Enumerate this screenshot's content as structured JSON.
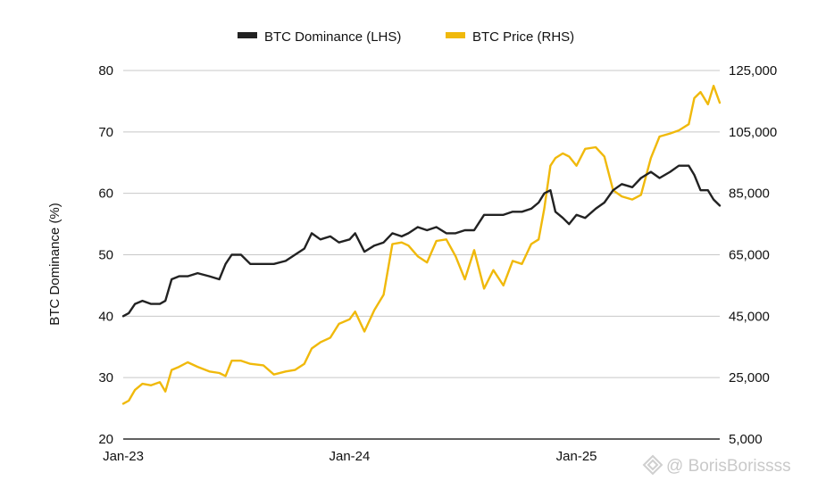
{
  "chart_data": {
    "type": "line",
    "legend": {
      "placement": "top-center"
    },
    "grid": {
      "horizontal": true,
      "vertical": false
    },
    "x_axis": {
      "type": "date",
      "range": [
        "2023-01-01",
        "2025-08-20"
      ],
      "ticks": [
        {
          "date": "2023-01-01",
          "label": "Jan-23"
        },
        {
          "date": "2024-01-01",
          "label": "Jan-24"
        },
        {
          "date": "2025-01-01",
          "label": "Jan-25"
        }
      ]
    },
    "y_left": {
      "label": "BTC Dominance (%)",
      "range": [
        20,
        80
      ],
      "ticks": [
        "20",
        "30",
        "40",
        "50",
        "60",
        "70",
        "80"
      ]
    },
    "y_right": {
      "label": "",
      "range": [
        5000,
        125000
      ],
      "ticks": [
        "5,000",
        "25,000",
        "45,000",
        "65,000",
        "85,000",
        "105,000",
        "125,000"
      ]
    },
    "series": [
      {
        "name": "BTC Dominance (LHS)",
        "axis": "left",
        "color": "#222222",
        "points": [
          [
            "2023-01-01",
            40.0
          ],
          [
            "2023-01-10",
            40.5
          ],
          [
            "2023-01-20",
            42.0
          ],
          [
            "2023-02-01",
            42.5
          ],
          [
            "2023-02-15",
            42.0
          ],
          [
            "2023-03-01",
            42.0
          ],
          [
            "2023-03-10",
            42.5
          ],
          [
            "2023-03-20",
            46.0
          ],
          [
            "2023-04-01",
            46.5
          ],
          [
            "2023-04-15",
            46.5
          ],
          [
            "2023-05-01",
            47.0
          ],
          [
            "2023-05-20",
            46.5
          ],
          [
            "2023-06-05",
            46.0
          ],
          [
            "2023-06-15",
            48.5
          ],
          [
            "2023-06-25",
            50.0
          ],
          [
            "2023-07-10",
            50.0
          ],
          [
            "2023-07-25",
            48.5
          ],
          [
            "2023-08-15",
            48.5
          ],
          [
            "2023-09-01",
            48.5
          ],
          [
            "2023-09-20",
            49.0
          ],
          [
            "2023-10-05",
            50.0
          ],
          [
            "2023-10-20",
            51.0
          ],
          [
            "2023-11-01",
            53.5
          ],
          [
            "2023-11-15",
            52.5
          ],
          [
            "2023-12-01",
            53.0
          ],
          [
            "2023-12-15",
            52.0
          ],
          [
            "2024-01-01",
            52.5
          ],
          [
            "2024-01-10",
            53.5
          ],
          [
            "2024-01-25",
            50.5
          ],
          [
            "2024-02-10",
            51.5
          ],
          [
            "2024-02-25",
            52.0
          ],
          [
            "2024-03-10",
            53.5
          ],
          [
            "2024-03-25",
            53.0
          ],
          [
            "2024-04-05",
            53.5
          ],
          [
            "2024-04-20",
            54.5
          ],
          [
            "2024-05-05",
            54.0
          ],
          [
            "2024-05-20",
            54.5
          ],
          [
            "2024-06-05",
            53.5
          ],
          [
            "2024-06-20",
            53.5
          ],
          [
            "2024-07-05",
            54.0
          ],
          [
            "2024-07-20",
            54.0
          ],
          [
            "2024-08-05",
            56.5
          ],
          [
            "2024-08-20",
            56.5
          ],
          [
            "2024-09-05",
            56.5
          ],
          [
            "2024-09-20",
            57.0
          ],
          [
            "2024-10-05",
            57.0
          ],
          [
            "2024-10-20",
            57.5
          ],
          [
            "2024-11-01",
            58.5
          ],
          [
            "2024-11-10",
            60.0
          ],
          [
            "2024-11-20",
            60.5
          ],
          [
            "2024-11-28",
            57.0
          ],
          [
            "2024-12-10",
            56.0
          ],
          [
            "2024-12-20",
            55.0
          ],
          [
            "2025-01-01",
            56.5
          ],
          [
            "2025-01-15",
            56.0
          ],
          [
            "2025-02-01",
            57.5
          ],
          [
            "2025-02-15",
            58.5
          ],
          [
            "2025-03-01",
            60.5
          ],
          [
            "2025-03-15",
            61.5
          ],
          [
            "2025-04-01",
            61.0
          ],
          [
            "2025-04-15",
            62.5
          ],
          [
            "2025-05-01",
            63.5
          ],
          [
            "2025-05-15",
            62.5
          ],
          [
            "2025-06-01",
            63.5
          ],
          [
            "2025-06-15",
            64.5
          ],
          [
            "2025-07-01",
            64.5
          ],
          [
            "2025-07-10",
            63.0
          ],
          [
            "2025-07-20",
            60.5
          ],
          [
            "2025-08-01",
            60.5
          ],
          [
            "2025-08-10",
            59.0
          ],
          [
            "2025-08-20",
            58.0
          ]
        ]
      },
      {
        "name": "BTC Price (RHS)",
        "axis": "right",
        "color": "#f0b90b",
        "points": [
          [
            "2023-01-01",
            16500
          ],
          [
            "2023-01-10",
            17500
          ],
          [
            "2023-01-20",
            21000
          ],
          [
            "2023-02-01",
            23000
          ],
          [
            "2023-02-15",
            22500
          ],
          [
            "2023-03-01",
            23500
          ],
          [
            "2023-03-10",
            20500
          ],
          [
            "2023-03-20",
            27500
          ],
          [
            "2023-04-01",
            28500
          ],
          [
            "2023-04-15",
            30000
          ],
          [
            "2023-05-01",
            28500
          ],
          [
            "2023-05-20",
            27000
          ],
          [
            "2023-06-05",
            26500
          ],
          [
            "2023-06-15",
            25500
          ],
          [
            "2023-06-25",
            30500
          ],
          [
            "2023-07-10",
            30500
          ],
          [
            "2023-07-25",
            29500
          ],
          [
            "2023-08-15",
            29000
          ],
          [
            "2023-09-01",
            26000
          ],
          [
            "2023-09-20",
            27000
          ],
          [
            "2023-10-05",
            27500
          ],
          [
            "2023-10-20",
            29500
          ],
          [
            "2023-11-01",
            34500
          ],
          [
            "2023-11-15",
            36500
          ],
          [
            "2023-12-01",
            38000
          ],
          [
            "2023-12-15",
            42500
          ],
          [
            "2024-01-01",
            44000
          ],
          [
            "2024-01-10",
            46500
          ],
          [
            "2024-01-25",
            40000
          ],
          [
            "2024-02-10",
            47000
          ],
          [
            "2024-02-25",
            52000
          ],
          [
            "2024-03-10",
            68500
          ],
          [
            "2024-03-25",
            69000
          ],
          [
            "2024-04-05",
            68000
          ],
          [
            "2024-04-20",
            64500
          ],
          [
            "2024-05-05",
            62500
          ],
          [
            "2024-05-20",
            69500
          ],
          [
            "2024-06-05",
            70000
          ],
          [
            "2024-06-20",
            64500
          ],
          [
            "2024-07-05",
            57000
          ],
          [
            "2024-07-20",
            66500
          ],
          [
            "2024-08-05",
            54000
          ],
          [
            "2024-08-20",
            60000
          ],
          [
            "2024-09-05",
            55000
          ],
          [
            "2024-09-20",
            63000
          ],
          [
            "2024-10-05",
            62000
          ],
          [
            "2024-10-20",
            68500
          ],
          [
            "2024-11-01",
            70000
          ],
          [
            "2024-11-10",
            80000
          ],
          [
            "2024-11-20",
            94000
          ],
          [
            "2024-11-28",
            96500
          ],
          [
            "2024-12-10",
            98000
          ],
          [
            "2024-12-20",
            97000
          ],
          [
            "2025-01-01",
            94000
          ],
          [
            "2025-01-15",
            99500
          ],
          [
            "2025-02-01",
            100000
          ],
          [
            "2025-02-15",
            97000
          ],
          [
            "2025-03-01",
            86000
          ],
          [
            "2025-03-15",
            84000
          ],
          [
            "2025-04-01",
            83000
          ],
          [
            "2025-04-15",
            84500
          ],
          [
            "2025-05-01",
            96500
          ],
          [
            "2025-05-15",
            103500
          ],
          [
            "2025-06-01",
            104500
          ],
          [
            "2025-06-15",
            105500
          ],
          [
            "2025-07-01",
            107500
          ],
          [
            "2025-07-10",
            116000
          ],
          [
            "2025-07-20",
            118000
          ],
          [
            "2025-08-01",
            114000
          ],
          [
            "2025-08-10",
            120000
          ],
          [
            "2025-08-20",
            114500
          ]
        ]
      }
    ]
  },
  "watermark": {
    "text": "@ BorisBorissss",
    "icon": "binance-diamond-icon"
  }
}
